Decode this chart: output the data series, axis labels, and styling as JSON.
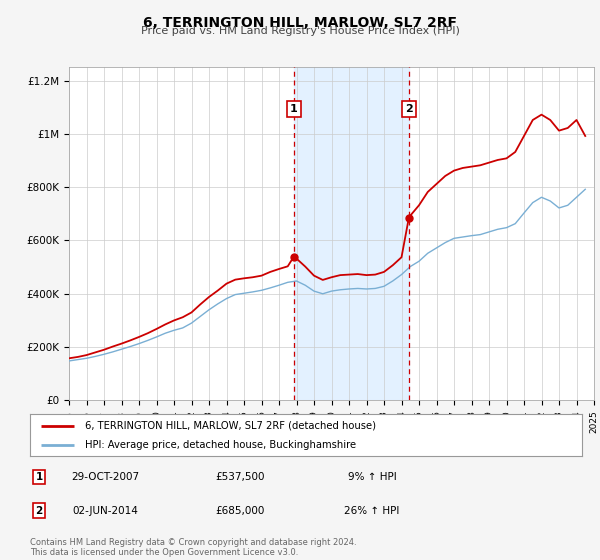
{
  "title": "6, TERRINGTON HILL, MARLOW, SL7 2RF",
  "subtitle": "Price paid vs. HM Land Registry's House Price Index (HPI)",
  "legend_label_red": "6, TERRINGTON HILL, MARLOW, SL7 2RF (detached house)",
  "legend_label_blue": "HPI: Average price, detached house, Buckinghamshire",
  "marker1_date": 2007.83,
  "marker1_value": 537500,
  "marker2_date": 2014.42,
  "marker2_value": 685000,
  "sale1_date": "29-OCT-2007",
  "sale1_price": "£537,500",
  "sale1_hpi": "9% ↑ HPI",
  "sale2_date": "02-JUN-2014",
  "sale2_price": "£685,000",
  "sale2_hpi": "26% ↑ HPI",
  "xlim": [
    1995,
    2025
  ],
  "ylim": [
    0,
    1250000
  ],
  "background_color": "#f5f5f5",
  "plot_bg_color": "#ffffff",
  "grid_color": "#cccccc",
  "red_color": "#cc0000",
  "blue_color": "#7aafd4",
  "shade_color": "#ddeeff",
  "vline_color": "#cc0000",
  "footer_text": "Contains HM Land Registry data © Crown copyright and database right 2024.\nThis data is licensed under the Open Government Licence v3.0.",
  "years_hpi": [
    1995.0,
    1995.5,
    1996.0,
    1996.5,
    1997.0,
    1997.5,
    1998.0,
    1998.5,
    1999.0,
    1999.5,
    2000.0,
    2000.5,
    2001.0,
    2001.5,
    2002.0,
    2002.5,
    2003.0,
    2003.5,
    2004.0,
    2004.5,
    2005.0,
    2005.5,
    2006.0,
    2006.5,
    2007.0,
    2007.5,
    2008.0,
    2008.5,
    2009.0,
    2009.5,
    2010.0,
    2010.5,
    2011.0,
    2011.5,
    2012.0,
    2012.5,
    2013.0,
    2013.5,
    2014.0,
    2014.5,
    2015.0,
    2015.5,
    2016.0,
    2016.5,
    2017.0,
    2017.5,
    2018.0,
    2018.5,
    2019.0,
    2019.5,
    2020.0,
    2020.5,
    2021.0,
    2021.5,
    2022.0,
    2022.5,
    2023.0,
    2023.5,
    2024.0,
    2024.5
  ],
  "hpi_values": [
    148000,
    153000,
    158000,
    165000,
    173000,
    182000,
    192000,
    202000,
    213000,
    225000,
    238000,
    252000,
    263000,
    272000,
    290000,
    315000,
    340000,
    362000,
    382000,
    397000,
    402000,
    407000,
    413000,
    422000,
    432000,
    443000,
    448000,
    432000,
    410000,
    400000,
    410000,
    415000,
    418000,
    420000,
    418000,
    420000,
    428000,
    448000,
    472000,
    502000,
    522000,
    552000,
    572000,
    592000,
    608000,
    613000,
    618000,
    622000,
    632000,
    642000,
    648000,
    663000,
    703000,
    742000,
    762000,
    748000,
    722000,
    732000,
    762000,
    792000
  ],
  "years_red": [
    1995.0,
    1995.5,
    1996.0,
    1996.5,
    1997.0,
    1997.5,
    1998.0,
    1998.5,
    1999.0,
    1999.5,
    2000.0,
    2000.5,
    2001.0,
    2001.5,
    2002.0,
    2002.5,
    2003.0,
    2003.5,
    2004.0,
    2004.5,
    2005.0,
    2005.5,
    2006.0,
    2006.5,
    2007.0,
    2007.5,
    2007.83,
    2008.0,
    2008.5,
    2009.0,
    2009.5,
    2010.0,
    2010.5,
    2011.0,
    2011.5,
    2012.0,
    2012.5,
    2013.0,
    2013.5,
    2014.0,
    2014.42,
    2014.5,
    2015.0,
    2015.5,
    2016.0,
    2016.5,
    2017.0,
    2017.5,
    2018.0,
    2018.5,
    2019.0,
    2019.5,
    2020.0,
    2020.5,
    2021.0,
    2021.5,
    2022.0,
    2022.5,
    2023.0,
    2023.5,
    2024.0,
    2024.5
  ],
  "red_values": [
    158000,
    163000,
    170000,
    180000,
    190000,
    202000,
    213000,
    225000,
    238000,
    252000,
    268000,
    285000,
    300000,
    312000,
    330000,
    360000,
    388000,
    412000,
    438000,
    453000,
    458000,
    462000,
    468000,
    482000,
    493000,
    503000,
    537500,
    532000,
    502000,
    468000,
    452000,
    462000,
    470000,
    472000,
    474000,
    470000,
    472000,
    482000,
    507000,
    537000,
    685000,
    693000,
    732000,
    782000,
    812000,
    842000,
    862000,
    872000,
    877000,
    882000,
    892000,
    902000,
    908000,
    932000,
    992000,
    1052000,
    1072000,
    1052000,
    1012000,
    1022000,
    1052000,
    992000
  ]
}
